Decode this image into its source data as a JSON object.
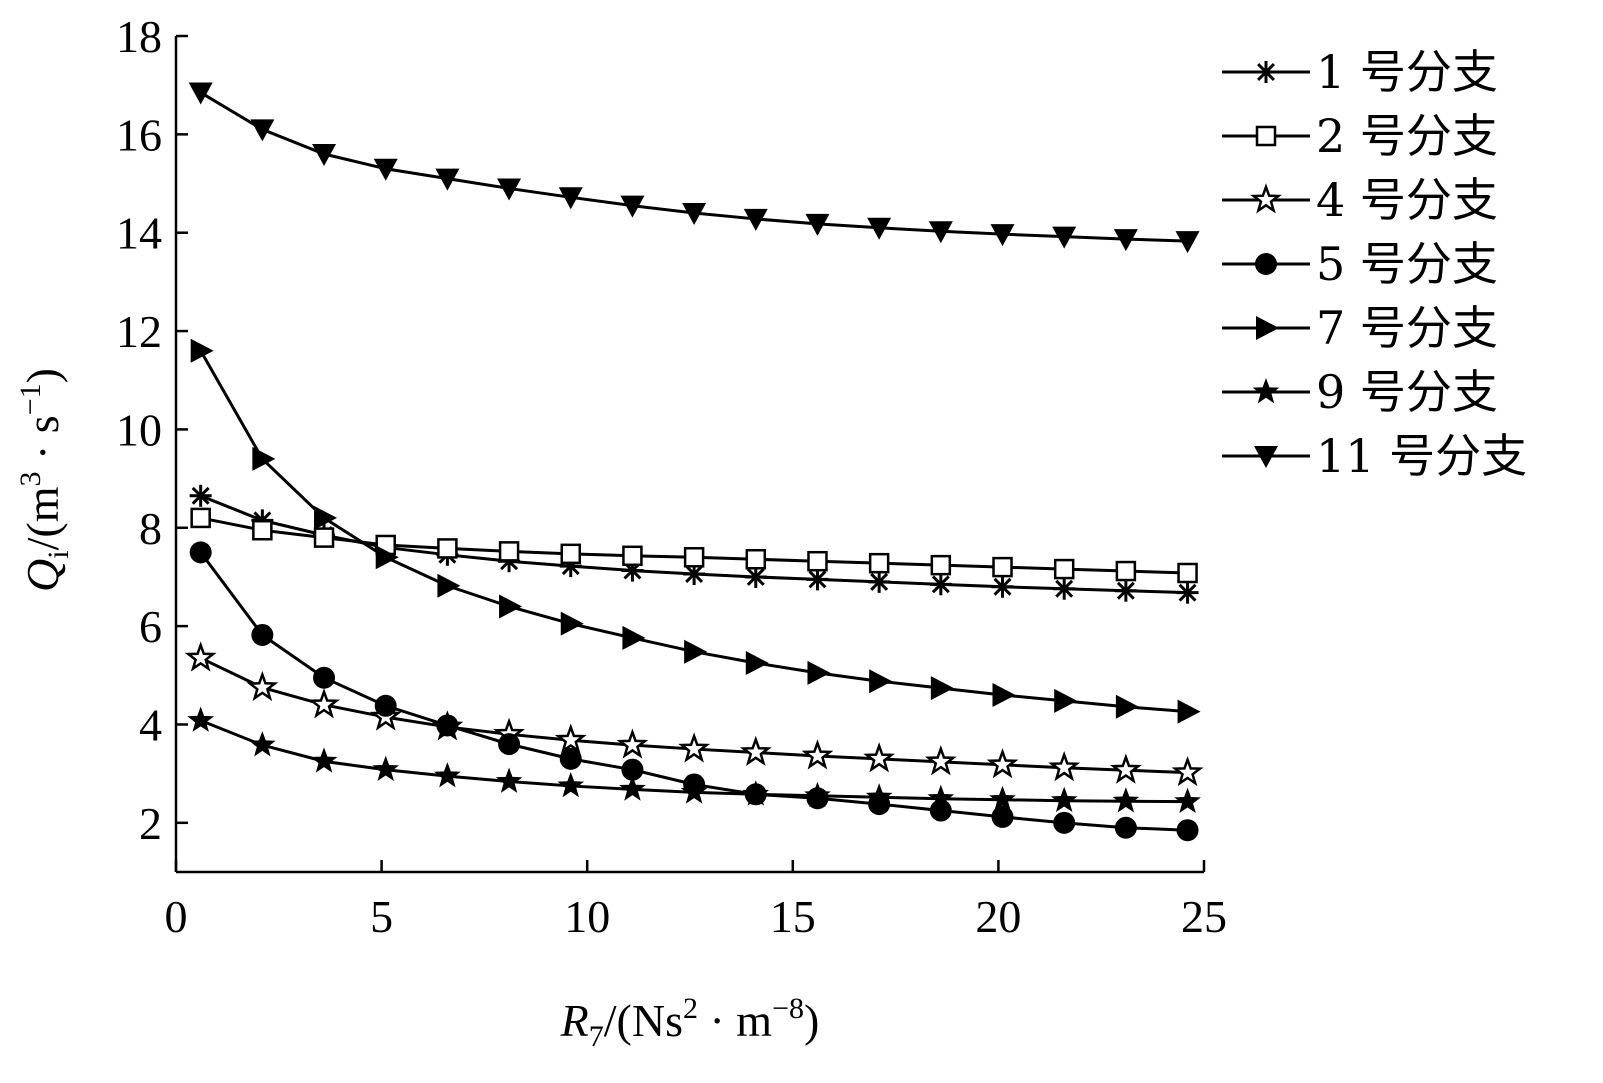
{
  "chart_data": {
    "type": "line",
    "x": [
      0.6,
      2.1,
      3.6,
      5.1,
      6.6,
      8.1,
      9.6,
      11.1,
      12.6,
      14.1,
      15.6,
      17.1,
      18.6,
      20.1,
      21.6,
      23.1,
      24.6
    ],
    "xlim": [
      0,
      25
    ],
    "ylim": [
      1,
      18
    ],
    "xticks": [
      "0",
      "5",
      "10",
      "15",
      "20",
      "25"
    ],
    "yticks": [
      "2",
      "4",
      "6",
      "8",
      "10",
      "12",
      "14",
      "16",
      "18"
    ],
    "xlabel": {
      "var": "R",
      "sub": "7",
      "unit_a": "/(Ns",
      "sup_a": "2",
      "unit_b": " · m",
      "sup_b": "−8",
      "unit_c": ")"
    },
    "ylabel": {
      "var": "Q",
      "sub": "i",
      "unit_a": "/(m",
      "sup_a": "3",
      "unit_b": " · s",
      "sup_b": "−1",
      "unit_c": ")"
    },
    "series": [
      {
        "name": "1 号分支",
        "marker": "asterisk",
        "values": [
          8.65,
          8.15,
          7.85,
          7.6,
          7.45,
          7.32,
          7.22,
          7.13,
          7.06,
          7.0,
          6.95,
          6.9,
          6.85,
          6.8,
          6.76,
          6.72,
          6.68
        ]
      },
      {
        "name": "2 号分支",
        "marker": "square-open",
        "values": [
          8.2,
          7.95,
          7.8,
          7.65,
          7.58,
          7.52,
          7.47,
          7.43,
          7.4,
          7.36,
          7.32,
          7.28,
          7.24,
          7.2,
          7.16,
          7.12,
          7.08
        ]
      },
      {
        "name": "4 号分支",
        "marker": "star-open",
        "values": [
          5.35,
          4.75,
          4.4,
          4.15,
          3.95,
          3.8,
          3.68,
          3.58,
          3.5,
          3.43,
          3.36,
          3.3,
          3.24,
          3.18,
          3.12,
          3.07,
          3.02
        ]
      },
      {
        "name": "5 号分支",
        "marker": "circle-filled",
        "values": [
          7.5,
          5.82,
          4.95,
          4.38,
          3.98,
          3.6,
          3.3,
          3.08,
          2.78,
          2.58,
          2.5,
          2.38,
          2.25,
          2.12,
          2.0,
          1.9,
          1.85
        ]
      },
      {
        "name": "7 号分支",
        "marker": "triangle-right",
        "values": [
          11.6,
          9.4,
          8.2,
          7.4,
          6.82,
          6.4,
          6.05,
          5.76,
          5.48,
          5.25,
          5.05,
          4.88,
          4.74,
          4.6,
          4.48,
          4.36,
          4.26
        ]
      },
      {
        "name": "9 号分支",
        "marker": "star-filled",
        "values": [
          4.08,
          3.58,
          3.25,
          3.08,
          2.95,
          2.84,
          2.75,
          2.68,
          2.62,
          2.58,
          2.55,
          2.52,
          2.49,
          2.47,
          2.45,
          2.44,
          2.43
        ]
      },
      {
        "name": "11 号分支",
        "marker": "triangle-down",
        "values": [
          16.85,
          16.1,
          15.6,
          15.3,
          15.1,
          14.9,
          14.72,
          14.55,
          14.4,
          14.28,
          14.18,
          14.1,
          14.03,
          13.97,
          13.92,
          13.87,
          13.83
        ]
      }
    ]
  }
}
